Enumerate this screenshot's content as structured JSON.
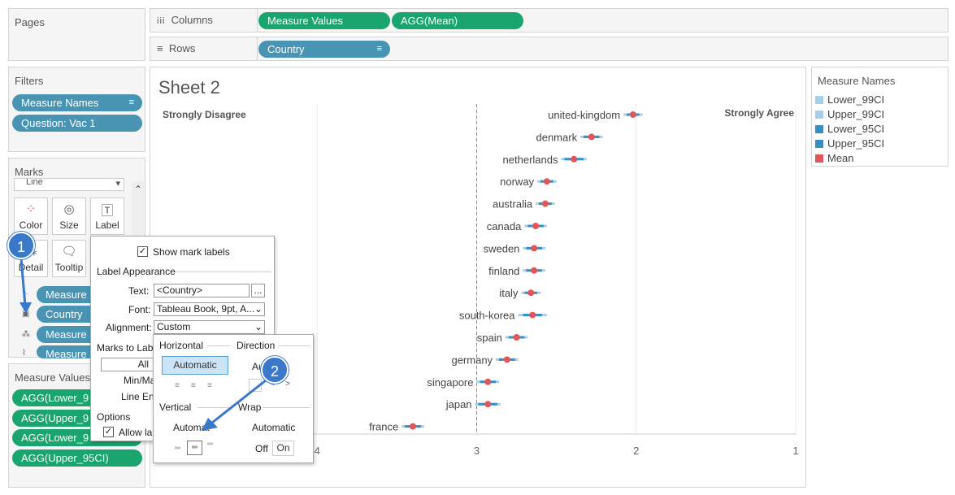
{
  "pages": {
    "title": "Pages"
  },
  "columns_shelf": {
    "label": "Columns",
    "icon": "columns-icon",
    "pills": [
      "Measure Values",
      "AGG(Mean)"
    ]
  },
  "rows_shelf": {
    "label": "Rows",
    "icon": "rows-icon",
    "pills": [
      "Country"
    ]
  },
  "filters": {
    "title": "Filters",
    "items": [
      "Measure Names",
      "Question: Vac 1"
    ]
  },
  "marks": {
    "title": "Marks",
    "type_select": "Line",
    "buttons": [
      {
        "label": "Color",
        "icon": "color-icon"
      },
      {
        "label": "Size",
        "icon": "size-icon"
      },
      {
        "label": "Label",
        "icon": "label-icon"
      },
      {
        "label": "Detail",
        "icon": "detail-icon"
      },
      {
        "label": "Tooltip",
        "icon": "tooltip-icon"
      }
    ],
    "pills": [
      "Measure",
      "Country",
      "Measure",
      "Measure"
    ]
  },
  "measure_values": {
    "title": "Measure Values",
    "items": [
      "AGG(Lower_9",
      "AGG(Upper_9",
      "AGG(Lower_9",
      "AGG(Upper_95CI)"
    ]
  },
  "sheet": {
    "title": "Sheet 2",
    "left_label": "Strongly Disagree",
    "right_label": "Strongly Agree",
    "x_ticks": [
      "4",
      "3",
      "2",
      "1"
    ]
  },
  "legend": {
    "title": "Measure Names",
    "items": [
      {
        "label": "Lower_99CI",
        "color": "#a6d0ea"
      },
      {
        "label": "Upper_99CI",
        "color": "#a6d0ea"
      },
      {
        "label": "Lower_95CI",
        "color": "#3a8fc0"
      },
      {
        "label": "Upper_95CI",
        "color": "#3a8fc0"
      },
      {
        "label": "Mean",
        "color": "#e15759"
      }
    ]
  },
  "label_dialog": {
    "show_mark_labels": "Show mark labels",
    "label_appearance": "Label Appearance",
    "text_label": "Text:",
    "text_value": "<Country>",
    "font_label": "Font:",
    "font_value": "Tableau Book, 9pt, A...",
    "alignment_label": "Alignment:",
    "alignment_value": "Custom",
    "marks_to_label": "Marks to Labe",
    "all": "All",
    "min_max": "Min/Ma",
    "line_end": "Line En",
    "options": "Options",
    "allow_labels": "Allow la"
  },
  "alignment_popup": {
    "horizontal": "Horizontal",
    "direction": "Direction",
    "automatic_h": "Automatic",
    "direction_value": "Au",
    "vertical": "Vertical",
    "wrap": "Wrap",
    "automatic_v": "Automat",
    "wrap_value": "Automatic",
    "off": "Off",
    "on": "On"
  },
  "badges": [
    "1",
    "2"
  ],
  "chart_data": {
    "type": "scatter",
    "title": "Sheet 2",
    "categories": [
      "united-kingdom",
      "denmark",
      "netherlands",
      "norway",
      "australia",
      "canada",
      "sweden",
      "finland",
      "italy",
      "south-korea",
      "spain",
      "germany",
      "singapore",
      "japan",
      "france"
    ],
    "x_reversed": true,
    "xlim": [
      5,
      1
    ],
    "x_ticks": [
      4,
      3,
      2,
      1
    ],
    "reference_line": 3,
    "series": [
      {
        "name": "Mean",
        "values": [
          2.02,
          2.28,
          2.39,
          2.56,
          2.57,
          2.63,
          2.64,
          2.64,
          2.66,
          2.65,
          2.75,
          2.81,
          2.93,
          2.93,
          3.4
        ]
      },
      {
        "name": "Lower_95CI",
        "values": [
          2.06,
          2.33,
          2.45,
          2.6,
          2.61,
          2.68,
          2.69,
          2.69,
          2.7,
          2.71,
          2.8,
          2.86,
          2.98,
          2.99,
          3.45
        ]
      },
      {
        "name": "Upper_95CI",
        "values": [
          1.98,
          2.23,
          2.33,
          2.52,
          2.53,
          2.58,
          2.59,
          2.59,
          2.62,
          2.59,
          2.7,
          2.76,
          2.88,
          2.87,
          3.35
        ]
      },
      {
        "name": "Lower_99CI",
        "values": [
          2.08,
          2.35,
          2.47,
          2.62,
          2.63,
          2.7,
          2.71,
          2.71,
          2.72,
          2.74,
          2.82,
          2.88,
          3.0,
          3.01,
          3.47
        ]
      },
      {
        "name": "Upper_99CI",
        "values": [
          1.96,
          2.21,
          2.31,
          2.5,
          2.51,
          2.56,
          2.57,
          2.57,
          2.6,
          2.56,
          2.68,
          2.74,
          2.86,
          2.85,
          3.33
        ]
      }
    ]
  }
}
